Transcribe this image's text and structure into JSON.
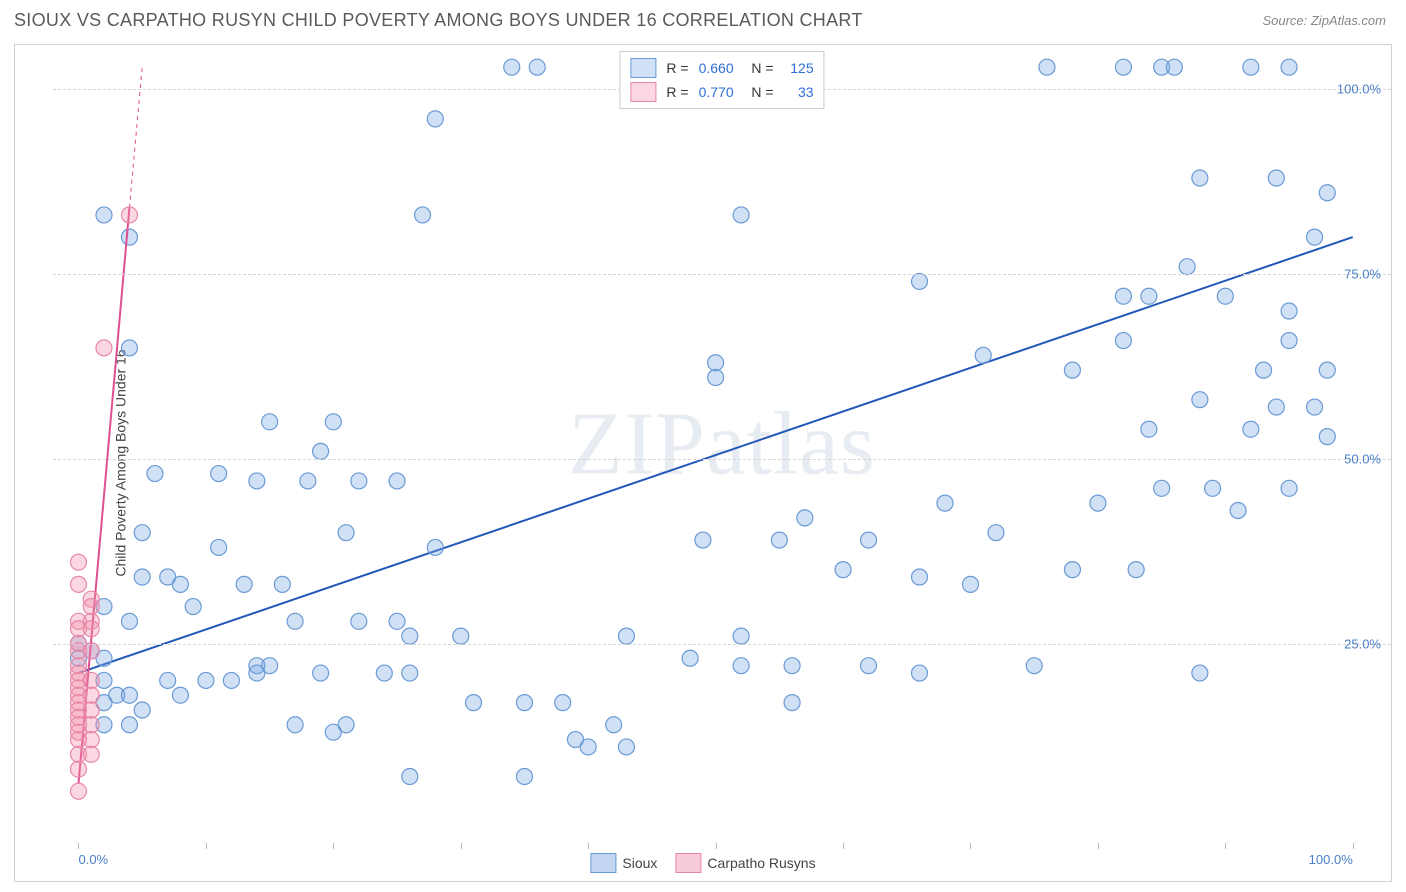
{
  "header": {
    "title": "SIOUX VS CARPATHO RUSYN CHILD POVERTY AMONG BOYS UNDER 16 CORRELATION CHART",
    "source_prefix": "Source: ",
    "source_name": "ZipAtlas.com"
  },
  "watermark": "ZIPatlas",
  "chart": {
    "type": "scatter",
    "y_axis_label": "Child Poverty Among Boys Under 16",
    "xlim": [
      -2,
      103
    ],
    "ylim": [
      -2,
      106
    ],
    "x_ticks_pct": [
      0,
      10,
      20,
      30,
      40,
      50,
      60,
      70,
      80,
      90,
      100
    ],
    "x_tick_labels": {
      "0": "0.0%",
      "100": "100.0%"
    },
    "y_grid_pct": [
      25,
      50,
      75,
      100
    ],
    "y_tick_labels": {
      "25": "25.0%",
      "50": "50.0%",
      "75": "75.0%",
      "100": "100.0%"
    },
    "grid_color": "#d5d5d5",
    "background_color": "#ffffff",
    "marker_radius": 8,
    "marker_stroke_width": 1.2,
    "trendline_width": 2,
    "series": [
      {
        "name": "Sioux",
        "fill_color": "rgba(120, 165, 225, 0.35)",
        "stroke_color": "#6a9ad6",
        "trend_color": "#2258b8",
        "trend_start": [
          0,
          21
        ],
        "trend_end": [
          100,
          80
        ],
        "trend_dashed_extension": null,
        "R": "0.660",
        "N": "125",
        "points": [
          [
            34,
            103
          ],
          [
            36,
            103
          ],
          [
            44,
            103
          ],
          [
            47,
            103
          ],
          [
            76,
            103
          ],
          [
            82,
            103
          ],
          [
            85,
            103
          ],
          [
            86,
            103
          ],
          [
            92,
            103
          ],
          [
            95,
            103
          ],
          [
            28,
            96
          ],
          [
            94,
            88
          ],
          [
            88,
            88
          ],
          [
            98,
            86
          ],
          [
            2,
            83
          ],
          [
            27,
            83
          ],
          [
            52,
            83
          ],
          [
            4,
            80
          ],
          [
            97,
            80
          ],
          [
            87,
            76
          ],
          [
            66,
            74
          ],
          [
            82,
            72
          ],
          [
            84,
            72
          ],
          [
            90,
            72
          ],
          [
            95,
            70
          ],
          [
            82,
            66
          ],
          [
            95,
            66
          ],
          [
            4,
            65
          ],
          [
            50,
            63
          ],
          [
            71,
            64
          ],
          [
            78,
            62
          ],
          [
            93,
            62
          ],
          [
            98,
            62
          ],
          [
            50,
            61
          ],
          [
            88,
            58
          ],
          [
            94,
            57
          ],
          [
            97,
            57
          ],
          [
            15,
            55
          ],
          [
            20,
            55
          ],
          [
            19,
            51
          ],
          [
            84,
            54
          ],
          [
            92,
            54
          ],
          [
            98,
            53
          ],
          [
            6,
            48
          ],
          [
            11,
            48
          ],
          [
            14,
            47
          ],
          [
            18,
            47
          ],
          [
            22,
            47
          ],
          [
            25,
            47
          ],
          [
            57,
            42
          ],
          [
            68,
            44
          ],
          [
            80,
            44
          ],
          [
            85,
            46
          ],
          [
            89,
            46
          ],
          [
            91,
            43
          ],
          [
            95,
            46
          ],
          [
            5,
            40
          ],
          [
            21,
            40
          ],
          [
            72,
            40
          ],
          [
            49,
            39
          ],
          [
            55,
            39
          ],
          [
            62,
            39
          ],
          [
            11,
            38
          ],
          [
            28,
            38
          ],
          [
            83,
            35
          ],
          [
            60,
            35
          ],
          [
            78,
            35
          ],
          [
            5,
            34
          ],
          [
            7,
            34
          ],
          [
            8,
            33
          ],
          [
            9,
            30
          ],
          [
            13,
            33
          ],
          [
            16,
            33
          ],
          [
            66,
            34
          ],
          [
            70,
            33
          ],
          [
            2,
            30
          ],
          [
            4,
            28
          ],
          [
            17,
            28
          ],
          [
            22,
            28
          ],
          [
            25,
            28
          ],
          [
            26,
            26
          ],
          [
            30,
            26
          ],
          [
            43,
            26
          ],
          [
            52,
            26
          ],
          [
            0,
            25
          ],
          [
            0,
            23
          ],
          [
            1,
            24
          ],
          [
            2,
            23
          ],
          [
            14,
            22
          ],
          [
            15,
            22
          ],
          [
            48,
            23
          ],
          [
            52,
            22
          ],
          [
            56,
            22
          ],
          [
            62,
            22
          ],
          [
            66,
            21
          ],
          [
            75,
            22
          ],
          [
            88,
            21
          ],
          [
            2,
            20
          ],
          [
            2,
            17
          ],
          [
            7,
            20
          ],
          [
            8,
            18
          ],
          [
            10,
            20
          ],
          [
            12,
            20
          ],
          [
            14,
            21
          ],
          [
            19,
            21
          ],
          [
            24,
            21
          ],
          [
            26,
            21
          ],
          [
            3,
            18
          ],
          [
            4,
            18
          ],
          [
            5,
            16
          ],
          [
            31,
            17
          ],
          [
            35,
            17
          ],
          [
            56,
            17
          ],
          [
            38,
            17
          ],
          [
            2,
            14
          ],
          [
            4,
            14
          ],
          [
            21,
            14
          ],
          [
            17,
            14
          ],
          [
            20,
            13
          ],
          [
            39,
            12
          ],
          [
            40,
            11
          ],
          [
            42,
            14
          ],
          [
            43,
            11
          ],
          [
            35,
            7
          ],
          [
            26,
            7
          ]
        ]
      },
      {
        "name": "Carpatho Rusyns",
        "fill_color": "rgba(240, 140, 170, 0.35)",
        "stroke_color": "#e888a8",
        "trend_color": "#e05090",
        "trend_start": [
          0,
          6
        ],
        "trend_end": [
          4,
          84
        ],
        "trend_dashed_extension": [
          5,
          103
        ],
        "R": "0.770",
        "N": "33",
        "points": [
          [
            4,
            83
          ],
          [
            2,
            65
          ],
          [
            0,
            36
          ],
          [
            0,
            33
          ],
          [
            1,
            31
          ],
          [
            1,
            30
          ],
          [
            1,
            28
          ],
          [
            0,
            28
          ],
          [
            0,
            27
          ],
          [
            1,
            27
          ],
          [
            0,
            25
          ],
          [
            0,
            24
          ],
          [
            1,
            24
          ],
          [
            0,
            22
          ],
          [
            0,
            21
          ],
          [
            0,
            20
          ],
          [
            1,
            20
          ],
          [
            0,
            19
          ],
          [
            0,
            18
          ],
          [
            0,
            17
          ],
          [
            1,
            18
          ],
          [
            0,
            16
          ],
          [
            0,
            15
          ],
          [
            1,
            16
          ],
          [
            0,
            14
          ],
          [
            1,
            14
          ],
          [
            0,
            13
          ],
          [
            0,
            12
          ],
          [
            1,
            12
          ],
          [
            0,
            10
          ],
          [
            1,
            10
          ],
          [
            0,
            8
          ],
          [
            0,
            5
          ]
        ]
      }
    ]
  },
  "legend_bottom": {
    "items": [
      {
        "label": "Sioux",
        "fill": "rgba(120, 165, 225, 0.45)",
        "border": "#6a9ad6"
      },
      {
        "label": "Carpatho Rusyns",
        "fill": "rgba(240, 140, 170, 0.45)",
        "border": "#e888a8"
      }
    ]
  }
}
